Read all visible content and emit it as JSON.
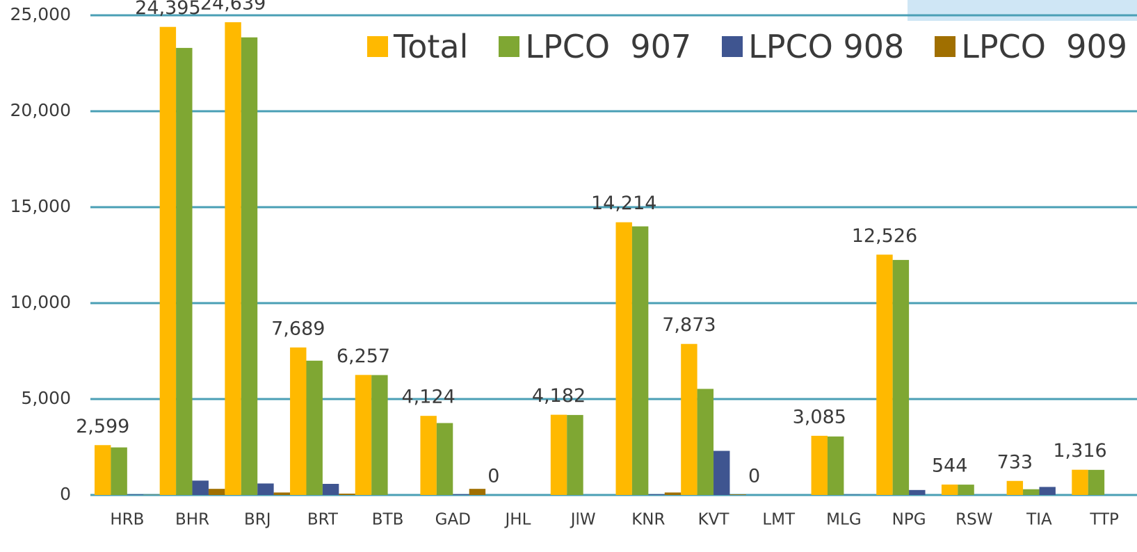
{
  "chart_data": {
    "type": "bar",
    "categories": [
      "HRB",
      "BHR",
      "BRJ",
      "BRT",
      "BTB",
      "GAD",
      "JHL",
      "JlW",
      "KNR",
      "KVT",
      "LMT",
      "MLG",
      "NPG",
      "RSW",
      "TIA",
      "TTP"
    ],
    "series": [
      {
        "name": "Total",
        "color": "#ffb900",
        "values": [
          2599,
          24395,
          24639,
          7689,
          6257,
          4124,
          0,
          4182,
          14214,
          7873,
          0,
          3085,
          12526,
          544,
          733,
          1316
        ],
        "value_labels": [
          "2,599",
          "24,395",
          "24,639",
          "7,689",
          "6,257",
          "4,124",
          "0",
          "4,182",
          "14,214",
          "7,873",
          "0",
          "3,085",
          "12,526",
          "544",
          "733",
          "1,316"
        ]
      },
      {
        "name": "LPCO  907",
        "color": "#7fa733",
        "values": [
          2480,
          23300,
          23850,
          7000,
          6250,
          3750,
          0,
          4170,
          14000,
          5530,
          0,
          3050,
          12250,
          540,
          300,
          1310
        ]
      },
      {
        "name": "LPCO 908",
        "color": "#3f5590",
        "values": [
          30,
          750,
          600,
          580,
          0,
          40,
          0,
          0,
          40,
          2300,
          0,
          15,
          260,
          0,
          420,
          0
        ]
      },
      {
        "name": "LPCO  909",
        "color": "#a06f00",
        "values": [
          10,
          320,
          130,
          70,
          0,
          320,
          0,
          0,
          130,
          30,
          0,
          0,
          0,
          0,
          0,
          0
        ]
      }
    ],
    "ylim": [
      0,
      25000
    ],
    "yticks": [
      0,
      {
        "value": 5000,
        "label": "5,000"
      },
      {
        "value": 10000,
        "label": "10,000"
      },
      {
        "value": 15000,
        "label": "15,000"
      },
      {
        "value": 20000,
        "label": "20,000"
      },
      {
        "value": 25000,
        "label": "25,000"
      }
    ],
    "grid": true,
    "legend": "top-right"
  }
}
